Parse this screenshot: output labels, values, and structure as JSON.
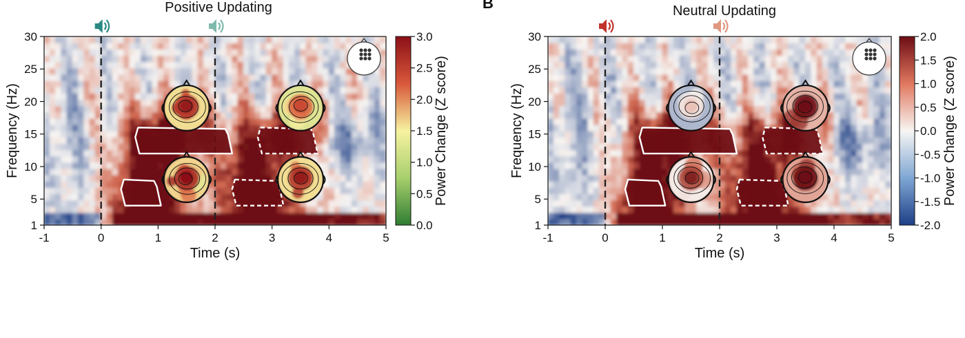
{
  "figure": {
    "panel_letters": [
      "",
      "B"
    ],
    "palette": {
      "heat_low": "#1d3f86",
      "heat_mid": "#f7f5f3",
      "heat_high": "#6d0d14",
      "green_low": "#2f7d32",
      "green_mid": "#f6f2a0",
      "green_high": "#8c1018",
      "icon_positive_onset": "#2a8a83",
      "icon_positive_second": "#7fb9ac",
      "icon_neutral_onset": "#c1332a",
      "icon_neutral_second": "#e09880",
      "roi_outline": "#ffffff",
      "event_line": "#222222"
    }
  },
  "chart_data": [
    {
      "type": "heatmap",
      "title": "Positive Updating",
      "xlabel": "Time (s)",
      "ylabel": "Frequency (Hz)",
      "xlim": [
        -1,
        5
      ],
      "ylim": [
        1,
        30
      ],
      "x_ticks": [
        "-1",
        "0",
        "1",
        "2",
        "3",
        "4",
        "5"
      ],
      "y_ticks": [
        "1",
        "5",
        "10",
        "15",
        "20",
        "25",
        "30"
      ],
      "event_lines_s": [
        0,
        2
      ],
      "event_icons": [
        "speaker-icon",
        "speaker-icon"
      ],
      "colorbar": {
        "label": "Power Change (Z score)",
        "range": [
          0.0,
          3.0
        ],
        "ticks": [
          "0.0",
          "0.5",
          "1.0",
          "1.5",
          "2.0",
          "2.5",
          "3.0"
        ],
        "colormap": "green-yellow-red"
      },
      "roi": [
        {
          "style": "solid",
          "t": [
            0.35,
            1.05
          ],
          "f": [
            4,
            8
          ]
        },
        {
          "style": "solid",
          "t": [
            0.6,
            2.3
          ],
          "f": [
            12,
            16
          ]
        },
        {
          "style": "dashed",
          "t": [
            2.3,
            3.2
          ],
          "f": [
            4,
            8
          ]
        },
        {
          "style": "dashed",
          "t": [
            2.75,
            3.8
          ],
          "f": [
            12,
            16
          ]
        }
      ],
      "topomaps": [
        {
          "name": "beta-early",
          "t": 1.5,
          "f": 19,
          "peak": 2.9
        },
        {
          "name": "beta-late",
          "t": 3.5,
          "f": 19,
          "peak": 2.4
        },
        {
          "name": "theta-early",
          "t": 1.5,
          "f": 8,
          "peak": 3.0
        },
        {
          "name": "theta-late",
          "t": 3.5,
          "f": 8,
          "peak": 2.9
        }
      ],
      "electrode_inset": "head-electrode-icon"
    },
    {
      "type": "heatmap",
      "title": "Neutral Updating",
      "xlabel": "Time (s)",
      "ylabel": "Frequency (Hz)",
      "xlim": [
        -1,
        5
      ],
      "ylim": [
        1,
        30
      ],
      "x_ticks": [
        "-1",
        "0",
        "1",
        "2",
        "3",
        "4",
        "5"
      ],
      "y_ticks": [
        "1",
        "5",
        "10",
        "15",
        "20",
        "25",
        "30"
      ],
      "event_lines_s": [
        0,
        2
      ],
      "event_icons": [
        "speaker-icon",
        "speaker-icon"
      ],
      "colorbar": {
        "label": "Power Change (Z score)",
        "range": [
          -2.0,
          2.0
        ],
        "ticks": [
          "-2.0",
          "-1.5",
          "-1.0",
          "-0.5",
          "0.0",
          "0.5",
          "1.0",
          "1.5",
          "2.0"
        ],
        "colormap": "blue-white-red"
      },
      "roi": [
        {
          "style": "solid",
          "t": [
            0.35,
            1.05
          ],
          "f": [
            4,
            8
          ]
        },
        {
          "style": "solid",
          "t": [
            0.6,
            2.3
          ],
          "f": [
            12,
            16
          ]
        },
        {
          "style": "dashed",
          "t": [
            2.3,
            3.2
          ],
          "f": [
            4,
            8
          ]
        },
        {
          "style": "dashed",
          "t": [
            2.75,
            3.8
          ],
          "f": [
            12,
            16
          ]
        }
      ],
      "topomaps": [
        {
          "name": "beta-early",
          "t": 1.5,
          "f": 19,
          "peak": 0.4
        },
        {
          "name": "beta-late",
          "t": 3.5,
          "f": 19,
          "peak": 2.6
        },
        {
          "name": "theta-early",
          "t": 1.5,
          "f": 8,
          "peak": 1.8
        },
        {
          "name": "theta-late",
          "t": 3.5,
          "f": 8,
          "peak": 2.8
        }
      ],
      "electrode_inset": "head-electrode-icon"
    }
  ]
}
